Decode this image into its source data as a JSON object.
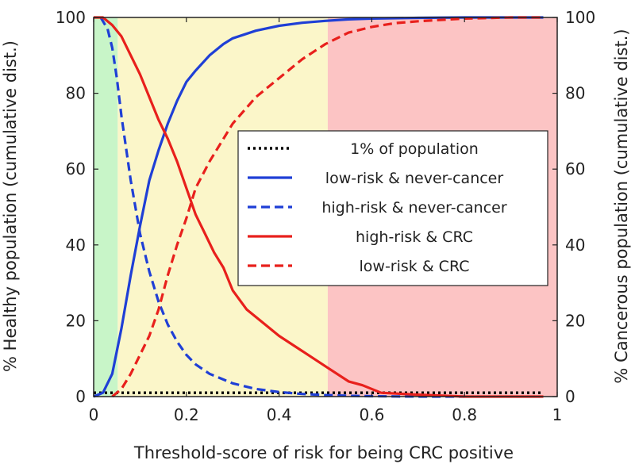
{
  "chart_data": {
    "type": "line",
    "title": "",
    "xlabel": "Threshold-score of risk for being CRC positive",
    "ylabel_left": "% Healthy population (cumulative dist.)",
    "ylabel_right": "% Cancerous population (cumulative dist.)",
    "xlim": [
      0,
      1
    ],
    "ylim": [
      0,
      100
    ],
    "x_ticks": [
      0,
      0.2,
      0.4,
      0.6,
      0.8,
      1
    ],
    "x_tick_labels": [
      "0",
      "0.2",
      "0.4",
      "0.6",
      "0.8",
      "1"
    ],
    "y_ticks": [
      0,
      20,
      40,
      60,
      80,
      100
    ],
    "y_tick_labels": [
      "0",
      "20",
      "40",
      "60",
      "80",
      "100"
    ],
    "grid": false,
    "legend_position": "center-right",
    "background_bands": [
      {
        "from": 0,
        "to": 0.052,
        "color": "#c8f5c8"
      },
      {
        "from": 0.052,
        "to": 0.505,
        "color": "#fbf6c9"
      },
      {
        "from": 0.505,
        "to": 1,
        "color": "#fcc4c4"
      }
    ],
    "series": [
      {
        "name": "1% of population",
        "color": "#000000",
        "style": "dotted",
        "x": [
          0,
          0.1,
          0.2,
          0.3,
          0.4,
          0.5,
          0.6,
          0.7,
          0.8,
          0.9,
          0.97
        ],
        "values": [
          1,
          1,
          1,
          1,
          1,
          1,
          1,
          1,
          1,
          1,
          1
        ]
      },
      {
        "name": "low-risk & never-cancer",
        "color": "#1f3fd6",
        "style": "solid",
        "x": [
          0,
          0.02,
          0.04,
          0.06,
          0.08,
          0.1,
          0.12,
          0.14,
          0.16,
          0.18,
          0.2,
          0.22,
          0.25,
          0.28,
          0.3,
          0.35,
          0.4,
          0.45,
          0.5,
          0.55,
          0.6,
          0.7,
          0.8,
          0.9,
          0.97
        ],
        "values": [
          0,
          1,
          6,
          18,
          32,
          45,
          57,
          65,
          72,
          78,
          83,
          86,
          90,
          93,
          94.5,
          96.5,
          97.8,
          98.6,
          99.1,
          99.5,
          99.7,
          99.9,
          100,
          100,
          100
        ]
      },
      {
        "name": "high-risk & never-cancer",
        "color": "#1f3fd6",
        "style": "dashed",
        "x": [
          0.015,
          0.03,
          0.04,
          0.05,
          0.06,
          0.08,
          0.1,
          0.12,
          0.14,
          0.16,
          0.18,
          0.2,
          0.22,
          0.25,
          0.3,
          0.35,
          0.4,
          0.45,
          0.5,
          0.55,
          0.6,
          0.65,
          0.7,
          0.8
        ],
        "values": [
          100,
          97,
          92,
          84,
          74,
          57,
          43,
          33,
          25,
          19,
          14.5,
          11,
          8.5,
          6,
          3.5,
          2,
          1.2,
          0.7,
          0.4,
          0.2,
          0.1,
          0.05,
          0,
          0
        ]
      },
      {
        "name": "high-risk & CRC",
        "color": "#e8201c",
        "style": "solid",
        "x": [
          0,
          0.02,
          0.04,
          0.06,
          0.08,
          0.1,
          0.12,
          0.14,
          0.16,
          0.18,
          0.2,
          0.22,
          0.24,
          0.26,
          0.28,
          0.3,
          0.33,
          0.36,
          0.4,
          0.45,
          0.5,
          0.55,
          0.58,
          0.62,
          0.7,
          0.8,
          0.9,
          0.97
        ],
        "values": [
          100,
          100,
          98,
          95,
          90,
          85,
          79,
          73,
          68,
          62,
          55,
          48,
          43,
          38,
          34,
          28,
          23,
          20,
          16,
          12,
          8,
          4,
          3,
          1,
          0.5,
          0,
          0,
          0
        ]
      },
      {
        "name": "low-risk & CRC",
        "color": "#e8201c",
        "style": "dashed",
        "x": [
          0.04,
          0.06,
          0.08,
          0.1,
          0.12,
          0.14,
          0.16,
          0.18,
          0.2,
          0.22,
          0.25,
          0.28,
          0.3,
          0.35,
          0.4,
          0.45,
          0.5,
          0.55,
          0.6,
          0.65,
          0.7,
          0.8,
          0.9,
          0.97
        ],
        "values": [
          0,
          2,
          6,
          11,
          16,
          23,
          32,
          40,
          47,
          55,
          62,
          68,
          72,
          79,
          84,
          89,
          93,
          96,
          97.5,
          98.5,
          99,
          99.7,
          100,
          100
        ]
      }
    ]
  }
}
